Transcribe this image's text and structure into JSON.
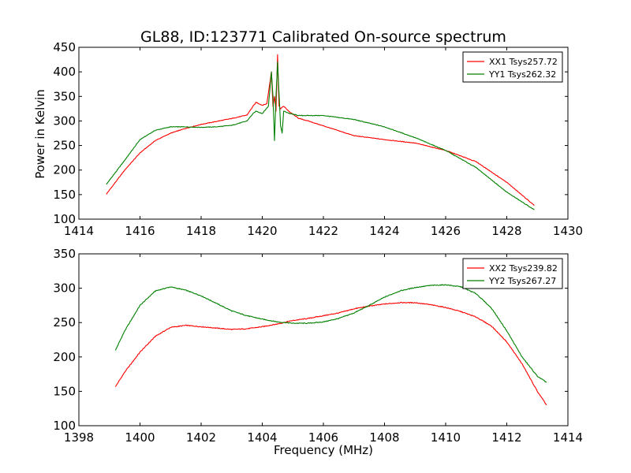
{
  "figure": {
    "title": "GL88, ID:123771 Calibrated On-source spectrum",
    "xlabel": "Frequency (MHz)",
    "ylabel": "Power in Kelvin"
  },
  "chart_data": [
    {
      "type": "line",
      "title": "GL88, ID:123771 Calibrated On-source spectrum",
      "xlabel": "",
      "ylabel": "Power in Kelvin",
      "xlim": [
        1414,
        1430
      ],
      "ylim": [
        100,
        450
      ],
      "xticks": [
        1414,
        1416,
        1418,
        1420,
        1422,
        1424,
        1426,
        1428,
        1430
      ],
      "yticks": [
        100,
        150,
        200,
        250,
        300,
        350,
        400,
        450
      ],
      "legend_position": "top-right",
      "grid": false,
      "series": [
        {
          "name": "XX1 Tsys257.72",
          "color": "#ff0000",
          "x": [
            1414.9,
            1415.5,
            1416.0,
            1416.5,
            1417.0,
            1417.5,
            1418.0,
            1418.5,
            1419.0,
            1419.5,
            1419.7,
            1419.8,
            1420.0,
            1420.15,
            1420.3,
            1420.35,
            1420.4,
            1420.45,
            1420.5,
            1420.55,
            1420.6,
            1420.7,
            1420.9,
            1421.2,
            1421.5,
            1422.0,
            1423.0,
            1424.0,
            1425.0,
            1426.0,
            1427.0,
            1428.0,
            1428.9
          ],
          "y": [
            151,
            200,
            235,
            260,
            275,
            285,
            293,
            299,
            305,
            312,
            330,
            338,
            332,
            335,
            400,
            330,
            350,
            320,
            435,
            330,
            325,
            330,
            318,
            305,
            300,
            290,
            270,
            262,
            255,
            240,
            217,
            175,
            128
          ]
        },
        {
          "name": "YY1 Tsys262.32",
          "color": "#008000",
          "x": [
            1414.9,
            1415.5,
            1416.0,
            1416.5,
            1417.0,
            1417.5,
            1418.0,
            1418.5,
            1419.0,
            1419.5,
            1419.7,
            1419.8,
            1420.0,
            1420.2,
            1420.3,
            1420.35,
            1420.4,
            1420.45,
            1420.5,
            1420.6,
            1420.65,
            1420.7,
            1420.9,
            1421.2,
            1422.0,
            1423.0,
            1424.0,
            1425.0,
            1426.0,
            1427.0,
            1428.0,
            1428.9
          ],
          "y": [
            171,
            220,
            262,
            281,
            288,
            288,
            287,
            288,
            291,
            300,
            315,
            320,
            315,
            330,
            400,
            350,
            260,
            350,
            420,
            290,
            275,
            320,
            315,
            311,
            311,
            303,
            288,
            266,
            240,
            205,
            155,
            119
          ]
        }
      ]
    },
    {
      "type": "line",
      "title": "",
      "xlabel": "Frequency (MHz)",
      "ylabel": "",
      "xlim": [
        1398,
        1414
      ],
      "ylim": [
        100,
        350
      ],
      "xticks": [
        1398,
        1400,
        1402,
        1404,
        1406,
        1408,
        1410,
        1412,
        1414
      ],
      "yticks": [
        100,
        150,
        200,
        250,
        300,
        350
      ],
      "legend_position": "top-right",
      "grid": false,
      "series": [
        {
          "name": "XX2 Tsys239.82",
          "color": "#ff0000",
          "x": [
            1399.2,
            1399.5,
            1400.0,
            1400.5,
            1401.0,
            1401.5,
            1402.0,
            1402.5,
            1403.0,
            1403.5,
            1404.0,
            1404.5,
            1405.0,
            1405.5,
            1406.0,
            1406.5,
            1407.0,
            1407.5,
            1408.0,
            1408.5,
            1409.0,
            1409.5,
            1410.0,
            1410.5,
            1411.0,
            1411.5,
            1412.0,
            1412.5,
            1413.0,
            1413.3
          ],
          "y": [
            157,
            178,
            207,
            230,
            243,
            246,
            244,
            242,
            240,
            241,
            244,
            248,
            253,
            256,
            260,
            264,
            270,
            274,
            277,
            279,
            279,
            276,
            272,
            266,
            258,
            245,
            222,
            190,
            150,
            130
          ]
        },
        {
          "name": "YY2 Tsys267.27",
          "color": "#008000",
          "x": [
            1399.2,
            1399.5,
            1400.0,
            1400.5,
            1401.0,
            1401.5,
            1402.0,
            1402.5,
            1403.0,
            1403.5,
            1404.0,
            1404.5,
            1405.0,
            1405.5,
            1406.0,
            1406.5,
            1407.0,
            1407.5,
            1408.0,
            1408.5,
            1409.0,
            1409.5,
            1410.0,
            1410.5,
            1411.0,
            1411.5,
            1412.0,
            1412.5,
            1413.0,
            1413.3
          ],
          "y": [
            210,
            238,
            275,
            296,
            302,
            297,
            289,
            278,
            267,
            260,
            255,
            251,
            249,
            249,
            251,
            256,
            264,
            275,
            287,
            296,
            301,
            304,
            305,
            302,
            292,
            271,
            238,
            200,
            172,
            163
          ]
        }
      ]
    }
  ]
}
